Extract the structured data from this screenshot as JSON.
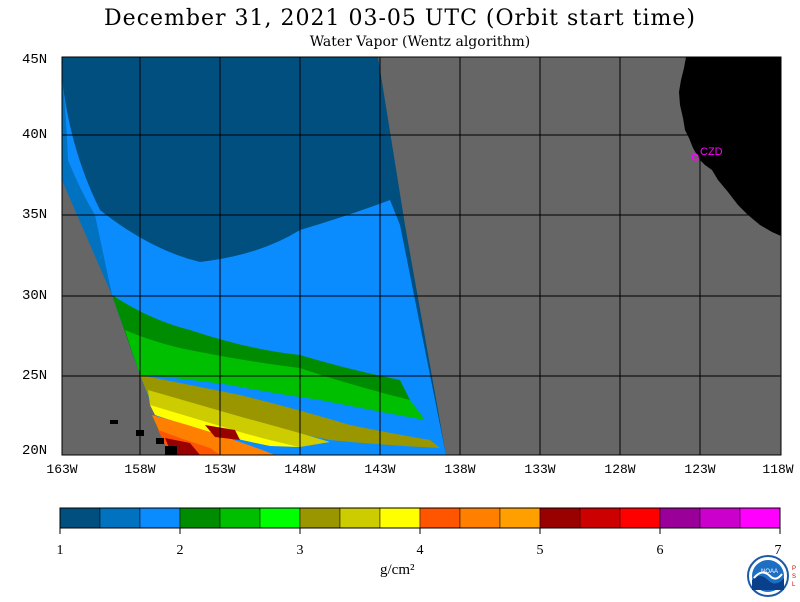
{
  "title": "December 31, 2021  03-05 UTC  (Orbit start time)",
  "subtitle": "Water Vapor (Wentz algorithm)",
  "map": {
    "lat_labels": [
      "45N",
      "40N",
      "35N",
      "30N",
      "25N",
      "20N"
    ],
    "lon_labels": [
      "163W",
      "158W",
      "153W",
      "148W",
      "143W",
      "138W",
      "133W",
      "128W",
      "123W",
      "118W"
    ],
    "station_label": "CZD",
    "colors": {
      "land": "#000000",
      "no_data": "#666666",
      "grid": "#000000",
      "station": "#ff00ff"
    }
  },
  "colorbar": {
    "ticks": [
      "1",
      "2",
      "3",
      "4",
      "5",
      "6",
      "7"
    ],
    "units": "g/cm²",
    "colors": [
      "#004f7f",
      "#0072bf",
      "#0a8cff",
      "#008c00",
      "#00bf00",
      "#00ff00",
      "#9a9600",
      "#cccc00",
      "#ffff00",
      "#ff5500",
      "#ff7f00",
      "#ffa000",
      "#990000",
      "#cc0000",
      "#ff0000",
      "#9a0099",
      "#cc00cc",
      "#ff00ff"
    ]
  },
  "logo": {
    "name": "noaa-logo-icon",
    "side_text": [
      "P",
      "S",
      "L"
    ]
  }
}
